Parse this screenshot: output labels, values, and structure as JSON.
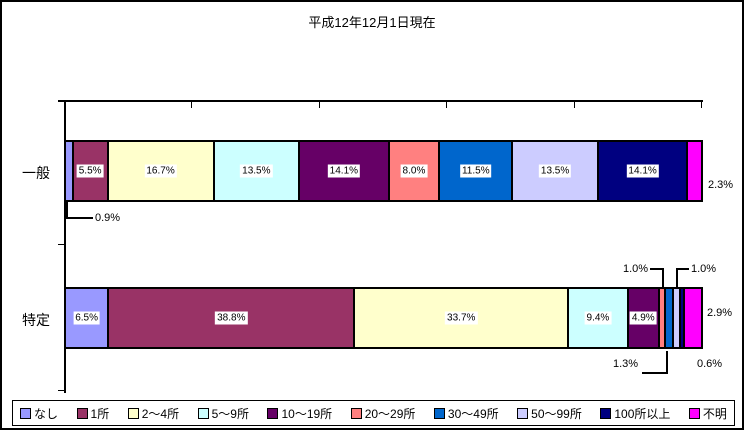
{
  "chart_data": {
    "type": "bar",
    "orientation": "horizontal",
    "stacked": true,
    "title": "平成12年12月1日現在",
    "categories": [
      "一般",
      "特定"
    ],
    "xlim": [
      0,
      100
    ],
    "x_tick_interval_percent": 20,
    "x_tick_labels_visible": false,
    "grid": false,
    "legend_position": "bottom",
    "series": [
      {
        "name": "なし",
        "color": "#9999FF",
        "values": [
          0.9,
          6.5
        ],
        "labels": [
          "0.9%",
          "6.5%"
        ]
      },
      {
        "name": "1所",
        "color": "#993366",
        "values": [
          5.5,
          38.8
        ],
        "labels": [
          "5.5%",
          "38.8%"
        ]
      },
      {
        "name": "2～4所",
        "color": "#FFFFCC",
        "values": [
          16.7,
          33.7
        ],
        "labels": [
          "16.7%",
          "33.7%"
        ]
      },
      {
        "name": "5～9所",
        "color": "#CCFFFF",
        "values": [
          13.5,
          9.4
        ],
        "labels": [
          "13.5%",
          "9.4%"
        ]
      },
      {
        "name": "10～19所",
        "color": "#660066",
        "values": [
          14.1,
          4.9
        ],
        "labels": [
          "14.1%",
          "4.9%"
        ]
      },
      {
        "name": "20～29所",
        "color": "#FF8080",
        "values": [
          8.0,
          1.0
        ],
        "labels": [
          "8.0%",
          "1.0%"
        ]
      },
      {
        "name": "30～49所",
        "color": "#0066CC",
        "values": [
          11.5,
          1.3
        ],
        "labels": [
          "11.5%",
          "1.3%"
        ]
      },
      {
        "name": "50～99所",
        "color": "#CCCCFF",
        "values": [
          13.5,
          1.0
        ],
        "labels": [
          "13.5%",
          "1.0%"
        ]
      },
      {
        "name": "100所以上",
        "color": "#000080",
        "values": [
          14.1,
          0.6
        ],
        "labels": [
          "14.1%",
          "0.6%"
        ]
      },
      {
        "name": "不明",
        "color": "#FF00FF",
        "values": [
          2.3,
          2.9
        ],
        "labels": [
          "2.3%",
          "2.9%"
        ]
      }
    ]
  }
}
